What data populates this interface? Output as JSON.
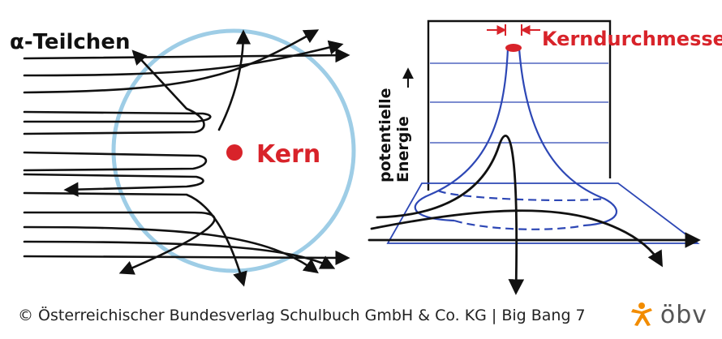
{
  "left": {
    "alpha_label": "α-Teilchen",
    "nucleus_label": "Kern"
  },
  "right": {
    "diameter_label": "Kerndurchmesser",
    "axis_label_line1": "potentielle",
    "axis_label_line2": "Energie"
  },
  "footer": {
    "copyright": "© Österreichischer Bundesverlag Schulbuch GmbH & Co. KG",
    "book": "Big Bang 7"
  },
  "logo": {
    "text": "öbv",
    "color": "#f28c00"
  },
  "colors": {
    "atom_circle": "#9ecde6",
    "nucleus": "#d8232a",
    "label_red": "#d8232a",
    "blue_lines": "#2d47b5",
    "track": "#111111"
  }
}
